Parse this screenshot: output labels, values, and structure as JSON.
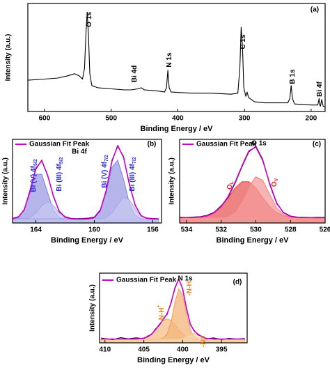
{
  "chart_data": [
    {
      "type": "line",
      "panel_label": "(a)",
      "xlabel": "Binding Energy / eV",
      "ylabel": "Intensity (a.u.)",
      "xlim": [
        625,
        179
      ],
      "xticks": [
        600,
        500,
        400,
        300,
        200
      ],
      "ylim": [
        0,
        100
      ],
      "x": [
        625,
        600,
        580,
        565,
        555,
        548,
        543,
        540,
        538,
        536,
        534,
        532,
        529,
        520,
        500,
        480,
        470,
        460,
        455,
        450,
        430,
        420,
        417,
        415,
        413,
        410,
        380,
        350,
        320,
        310,
        307,
        305,
        303,
        301,
        298,
        296,
        294,
        285,
        270,
        250,
        235,
        232,
        230,
        228,
        225,
        200,
        190,
        188,
        187,
        186,
        184,
        182,
        179
      ],
      "series": [
        {
          "color": "#000000",
          "values": [
            29,
            30,
            31,
            33,
            35,
            33,
            30,
            40,
            70,
            92,
            70,
            35,
            24,
            22,
            21,
            20,
            20,
            21,
            22,
            20,
            19,
            18,
            22,
            38,
            22,
            18,
            17,
            17,
            16,
            17,
            40,
            78,
            60,
            22,
            14,
            18,
            13,
            9,
            8,
            8,
            8,
            12,
            24,
            12,
            7,
            6,
            6,
            12,
            6,
            5,
            11,
            5,
            4
          ]
        }
      ],
      "annotations": [
        {
          "text": "O 1s"
        },
        {
          "text": "Bi 4d"
        },
        {
          "text": "N 1s"
        },
        {
          "text": "C 1s"
        },
        {
          "text": "B 1s"
        },
        {
          "text": "Bi 4f"
        }
      ]
    },
    {
      "type": "line",
      "panel_label": "(b)",
      "title": "Bi 4f",
      "xlabel": "Binding Energy / eV",
      "ylabel": "Intensity (a.u.)",
      "xlim": [
        165.6,
        155.4
      ],
      "xticks": [
        164,
        160,
        156
      ],
      "ylim": [
        0,
        105
      ],
      "x": [
        165.6,
        165.2,
        164.8,
        164.4,
        164,
        163.6,
        163.2,
        162.8,
        162.4,
        162,
        161.6,
        161.2,
        160.8,
        160.4,
        160,
        159.6,
        159.2,
        158.8,
        158.4,
        158,
        157.6,
        157.2,
        156.8,
        156.4,
        156,
        155.6
      ],
      "series": [
        {
          "color": "#7f7fd9",
          "fill": "#9c9ce6",
          "values": [
            5.3,
            7.3,
            16.5,
            38.1,
            61.2,
            61.2,
            38.1,
            16.5,
            7.3,
            5.3,
            5,
            5,
            5,
            5,
            5,
            5,
            5,
            5,
            5,
            5,
            5,
            5,
            5,
            5,
            5,
            5
          ]
        },
        {
          "color": "#a5a5e8",
          "fill": "#c8c8f2",
          "values": [
            5,
            5,
            5.3,
            7.0,
            12.6,
            21.9,
            27,
            21.9,
            12.6,
            7.0,
            5.3,
            5,
            5,
            5,
            5,
            5,
            5,
            5,
            5,
            5,
            5,
            5,
            5,
            5,
            5,
            5
          ]
        },
        {
          "color": "#7f7fd9",
          "fill": "#9c9ce6",
          "values": [
            5,
            5,
            5,
            5,
            5,
            5,
            5,
            5,
            5,
            5,
            5,
            5,
            5,
            5.2,
            6.8,
            15.1,
            38.4,
            69.7,
            78.8,
            54.7,
            24.7,
            9.6,
            5.6,
            5,
            5,
            5
          ]
        },
        {
          "color": "#a5a5e8",
          "fill": "#c8c8f2",
          "values": [
            5,
            5,
            5,
            5,
            5,
            5,
            5,
            5,
            5,
            5,
            5,
            5,
            5,
            5,
            5,
            5.2,
            6.7,
            12.3,
            23.5,
            32.6,
            29.1,
            17.5,
            8.8,
            5.7,
            5.1,
            5
          ]
        },
        {
          "color": "#000000",
          "values": [
            5.8,
            7.9,
            16.2,
            41.5,
            67.5,
            79.0,
            59.2,
            34.5,
            14.1,
            8.0,
            5.9,
            5.4,
            5.6,
            6.0,
            7.5,
            16.2,
            39.0,
            78.5,
            96.0,
            83.5,
            47.9,
            22.8,
            9.0,
            6.2,
            5.6,
            5.3
          ]
        },
        {
          "name": "Gaussian Fit Peak",
          "color": "#cc00cc",
          "values": [
            5.3,
            7.3,
            16.8,
            40.1,
            68.8,
            78.1,
            60.1,
            33.4,
            14.9,
            7.3,
            5.3,
            5,
            5,
            5.2,
            6.8,
            15.3,
            40.1,
            77.0,
            97.3,
            82.3,
            48.8,
            22.1,
            9.4,
            5.7,
            5.1,
            5
          ]
        }
      ],
      "annotations": [
        {
          "text": "Bi (V) 4f",
          "sub": "5/2"
        },
        {
          "text": "Bi (III) 4f",
          "sub": "5/2"
        },
        {
          "text": "Bi (V) 4f",
          "sub": "7/2"
        },
        {
          "text": "Bi (III) 4f",
          "sub": "7/2"
        }
      ],
      "annotation_color": "#2b2bd0"
    },
    {
      "type": "line",
      "panel_label": "(c)",
      "title": "O 1s",
      "xlabel": "Binding Energy / eV",
      "ylabel": "Intensity (a.u.)",
      "xlim": [
        534.4,
        526
      ],
      "xticks": [
        534,
        532,
        530,
        528,
        526
      ],
      "ylim": [
        0,
        125
      ],
      "x": [
        534.4,
        534,
        533.6,
        533.2,
        532.8,
        532.4,
        532,
        531.6,
        531.2,
        530.8,
        530.4,
        530,
        529.6,
        529.2,
        528.8,
        528.4,
        528,
        527.6,
        527.2,
        526.8,
        526.4,
        526
      ],
      "series": [
        {
          "color": "#e04848",
          "fill": "#e85a5a",
          "values": [
            8,
            8.1,
            8.2,
            8.8,
            10.8,
            15.4,
            24.4,
            37.7,
            52.1,
            61.7,
            61.7,
            52.1,
            37.7,
            24.4,
            15.4,
            10.8,
            8.8,
            8.2,
            8.1,
            8,
            8,
            8
          ]
        },
        {
          "color": "#f08080",
          "fill": "#f59a9a",
          "values": [
            8,
            8,
            8,
            8,
            8,
            8.1,
            8.3,
            10.0,
            16.4,
            31.7,
            54.1,
            69.3,
            63.7,
            42.7,
            22.8,
            12.3,
            8.9,
            8.1,
            8,
            8,
            8,
            8
          ]
        },
        {
          "color": "#000000",
          "values": [
            8.6,
            8.3,
            9.0,
            9.5,
            11.6,
            16.3,
            25.8,
            38.4,
            59.0,
            84.1,
            106.2,
            114.8,
            95.1,
            57.5,
            29.0,
            15.8,
            10.4,
            8.9,
            8.5,
            8.2,
            8.6,
            8.4
          ]
        },
        {
          "name": "Gaussian Fit Peak",
          "color": "#cc00cc",
          "values": [
            8,
            8.1,
            8.2,
            8.8,
            10.8,
            15.5,
            24.7,
            39.7,
            60.5,
            85.4,
            107.8,
            113.4,
            93.4,
            59.1,
            30.2,
            15.1,
            9.7,
            8.3,
            8.1,
            8,
            8,
            8
          ]
        }
      ],
      "annotations": [
        {
          "text": "O",
          "sub": "L"
        },
        {
          "text": "O",
          "sub": "V"
        }
      ],
      "annotation_color": "#e02020"
    },
    {
      "type": "line",
      "panel_label": "(d)",
      "title": "N 1s",
      "xlabel": "Binding Energy / eV",
      "ylabel": "Intensity (a.u.)",
      "xlim": [
        410.7,
        391.7
      ],
      "xticks": [
        410,
        405,
        400,
        395
      ],
      "ylim": [
        0,
        110
      ],
      "x": [
        410.5,
        409,
        408,
        407,
        406,
        405,
        404.5,
        404,
        403.5,
        403,
        402.5,
        402,
        401.5,
        401,
        400.5,
        400,
        399.5,
        399,
        398.5,
        398,
        397.5,
        397,
        396,
        395,
        394,
        393,
        392
      ],
      "series": [
        {
          "color": "#f0a860",
          "fill": "#f6c08a",
          "values": [
            6,
            6,
            6,
            6,
            6.1,
            7.4,
            9.6,
            14.0,
            20.7,
            28.6,
            35.3,
            38,
            35.3,
            28.6,
            20.7,
            14.0,
            9.6,
            7.4,
            6.4,
            6.1,
            6,
            6,
            6,
            6,
            6,
            6,
            6
          ]
        },
        {
          "color": "#eca050",
          "fill": "#f3b478",
          "values": [
            6,
            6,
            6,
            6,
            6,
            6,
            6,
            6,
            6,
            6.2,
            7.6,
            14.2,
            33.3,
            64.1,
            85.3,
            75.4,
            45.0,
            20.0,
            9.2,
            6.5,
            6.1,
            6,
            6,
            6,
            6,
            6,
            6
          ]
        },
        {
          "color": "#f0c090",
          "fill": "#f8d6b2",
          "values": [
            6,
            6,
            6,
            6,
            6,
            6,
            6,
            6,
            6,
            6,
            6,
            6,
            6,
            6.1,
            6.5,
            7.9,
            10.8,
            13.9,
            14.9,
            12.8,
            9.5,
            7.2,
            6,
            6,
            6,
            6,
            6
          ]
        },
        {
          "color": "#000000",
          "values": [
            7.5,
            5.2,
            8.1,
            6.4,
            7.9,
            6.5,
            10.8,
            13.1,
            22.0,
            27.5,
            38.2,
            45.0,
            64.0,
            85.2,
            101.8,
            84.0,
            54.9,
            28.1,
            19.6,
            12.2,
            10.5,
            6.4,
            7.8,
            5.3,
            7.2,
            6.0,
            6.8
          ]
        },
        {
          "name": "Gaussian Fit Peak",
          "color": "#cc00cc",
          "values": [
            6,
            6,
            6,
            6,
            6.1,
            7.4,
            9.6,
            14.0,
            20.7,
            28.8,
            36.9,
            46.2,
            62.6,
            86.8,
            100.5,
            85.3,
            53.4,
            29.3,
            18.5,
            13.4,
            9.6,
            7.2,
            6,
            6,
            6,
            6,
            6
          ]
        }
      ],
      "annotations": [
        {
          "text": "-N-H",
          "sup": "+"
        },
        {
          "text": "-N-H"
        },
        {
          "text": "-N="
        }
      ],
      "annotation_color": "#e0881e"
    }
  ]
}
